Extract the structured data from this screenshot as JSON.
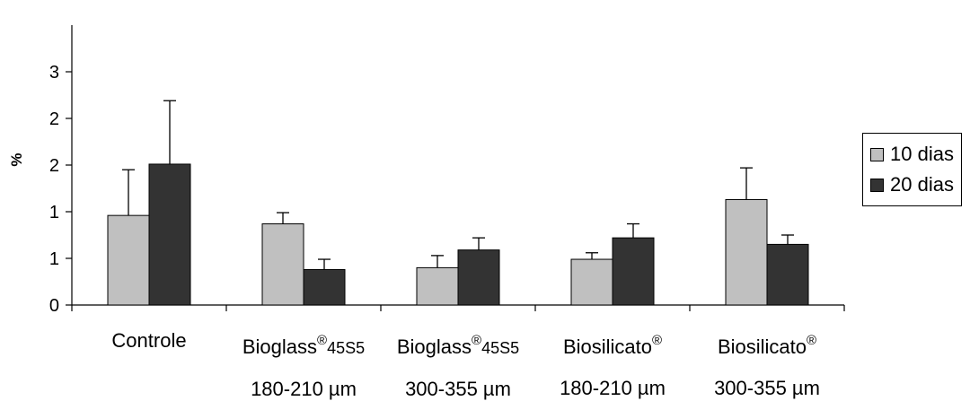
{
  "chart_data": {
    "type": "bar",
    "ylabel": "%",
    "ylim": [
      0,
      3
    ],
    "yticks": [
      {
        "value": 0,
        "label": "0"
      },
      {
        "value": 0.5,
        "label": "1"
      },
      {
        "value": 1.0,
        "label": "1"
      },
      {
        "value": 1.5,
        "label": "2"
      },
      {
        "value": 2.0,
        "label": "2"
      },
      {
        "value": 2.5,
        "label": "3"
      }
    ],
    "categories": [
      {
        "line1_main": "Controle",
        "reg": "",
        "line1_sub": "",
        "line2": ""
      },
      {
        "line1_main": "Bioglass",
        "reg": "®",
        "line1_sub": "45S5",
        "line2": "180-210 µm"
      },
      {
        "line1_main": "Bioglass",
        "reg": "®",
        "line1_sub": "45S5",
        "line2": "300-355 µm"
      },
      {
        "line1_main": "Biosilicato",
        "reg": "®",
        "line1_sub": "",
        "line2": "180-210 µm"
      },
      {
        "line1_main": "Biosilicato",
        "reg": "®",
        "line1_sub": "",
        "line2": "300-355 µm"
      }
    ],
    "series": [
      {
        "name": "10 dias",
        "color": "#c0c0c0",
        "values": [
          0.96,
          0.87,
          0.4,
          0.49,
          1.13
        ],
        "errors": [
          0.49,
          0.12,
          0.13,
          0.07,
          0.34
        ]
      },
      {
        "name": "20 dias",
        "color": "#333333",
        "values": [
          1.51,
          0.38,
          0.59,
          0.72,
          0.65
        ],
        "errors": [
          0.68,
          0.11,
          0.13,
          0.15,
          0.1
        ]
      }
    ],
    "legend_position": "right",
    "grid": false
  }
}
